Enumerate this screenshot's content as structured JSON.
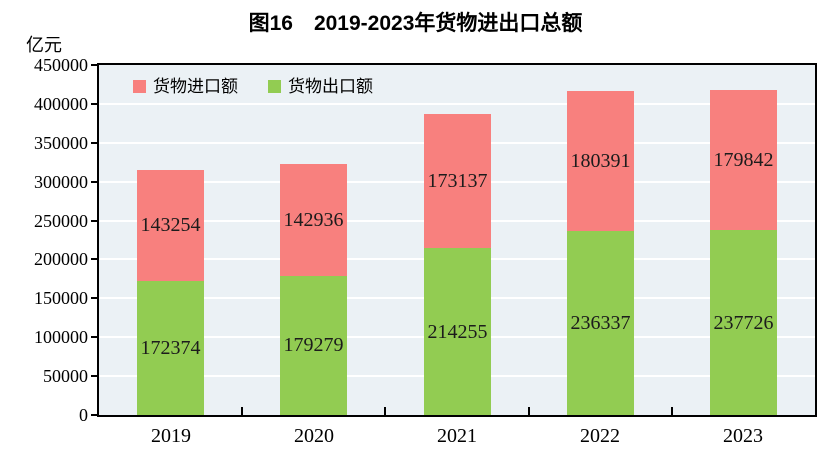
{
  "chart_data": {
    "type": "bar",
    "stacked": true,
    "title": "图16　2019-2023年货物进出口总额",
    "unit_label": "亿元",
    "categories": [
      "2019",
      "2020",
      "2021",
      "2022",
      "2023"
    ],
    "series": [
      {
        "name": "货物出口额",
        "color": "#92CC52",
        "values": [
          172374,
          179279,
          214255,
          236337,
          237726
        ]
      },
      {
        "name": "货物进口额",
        "color": "#F8807E",
        "values": [
          143254,
          142936,
          173137,
          180391,
          179842
        ]
      }
    ],
    "legend": [
      {
        "label": "货物进口额",
        "color": "#F8807E"
      },
      {
        "label": "货物出口额",
        "color": "#92CC52"
      }
    ],
    "ylim": [
      0,
      450000
    ],
    "ytick_step": 50000,
    "plot_bg": "#EBF1F5",
    "grid_color": "#FFFFFF",
    "legend_position": "top-left-inside",
    "data_labels": "centered-in-segment"
  }
}
